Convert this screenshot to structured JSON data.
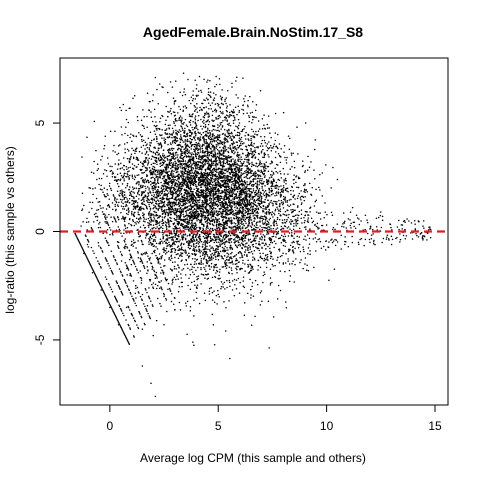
{
  "chart_data": {
    "type": "scatter",
    "title": "AgedFemale.Brain.NoStim.17_S8",
    "xlabel": "Average log CPM (this sample and others)",
    "ylabel": "log-ratio (this sample vs others)",
    "xlim": [
      -2.3,
      15.6
    ],
    "ylim": [
      -8.0,
      8.0
    ],
    "x_ticks": [
      0,
      5,
      10,
      15
    ],
    "x_tick_labels": [
      "0",
      "5",
      "10",
      "15"
    ],
    "y_ticks": [
      -5,
      0,
      5
    ],
    "y_tick_labels": [
      "-5",
      "0",
      "5"
    ],
    "grid": false,
    "point_color": "#000000",
    "reference_line": {
      "y": 0,
      "color": "#e02020",
      "style": "dashed"
    },
    "cloud_summary": {
      "center_x": 4.5,
      "center_y": 1.8,
      "x_range": [
        -1.6,
        14.8
      ],
      "y_range": [
        -7.6,
        7.3
      ]
    },
    "low_count_line": {
      "from": [
        -1.6,
        -0.1
      ],
      "to": [
        0.9,
        -5.2
      ]
    },
    "points": [
      [
        -1.6,
        -0.1
      ],
      [
        -1.2,
        -1.0
      ],
      [
        -0.8,
        -1.9
      ],
      [
        -0.4,
        -2.7
      ],
      [
        0.0,
        -3.5
      ],
      [
        0.4,
        -4.3
      ],
      [
        0.9,
        -5.2
      ],
      [
        1.5,
        -6.2
      ],
      [
        1.9,
        -7.0
      ],
      [
        2.1,
        -7.6
      ],
      [
        -1.2,
        1.2
      ],
      [
        -0.9,
        2.0
      ],
      [
        -0.6,
        2.4
      ],
      [
        -0.3,
        0.8
      ],
      [
        0.1,
        3.0
      ],
      [
        0.4,
        3.6
      ],
      [
        0.8,
        4.1
      ],
      [
        1.1,
        4.4
      ],
      [
        1.5,
        4.9
      ],
      [
        1.8,
        5.6
      ],
      [
        2.0,
        6.3
      ],
      [
        2.1,
        7.1
      ],
      [
        2.3,
        6.8
      ],
      [
        2.8,
        6.9
      ],
      [
        3.4,
        7.3
      ],
      [
        3.0,
        6.0
      ],
      [
        3.9,
        5.8
      ],
      [
        4.5,
        5.1
      ],
      [
        5.0,
        5.8
      ],
      [
        5.3,
        4.7
      ],
      [
        6.0,
        4.5
      ],
      [
        6.5,
        4.0
      ],
      [
        7.0,
        3.7
      ],
      [
        7.5,
        3.2
      ],
      [
        8.0,
        2.9
      ],
      [
        8.5,
        2.4
      ],
      [
        9.0,
        2.2
      ],
      [
        9.8,
        2.7
      ],
      [
        10.5,
        2.4
      ],
      [
        11.2,
        1.1
      ],
      [
        12.5,
        0.9
      ],
      [
        13.5,
        0.3
      ],
      [
        14.5,
        -0.2
      ],
      [
        14.8,
        0.1
      ],
      [
        2.0,
        1.8
      ],
      [
        2.5,
        2.2
      ],
      [
        3.0,
        1.5
      ],
      [
        3.5,
        2.8
      ],
      [
        4.0,
        2.0
      ],
      [
        4.5,
        1.6
      ],
      [
        5.0,
        1.9
      ],
      [
        5.5,
        1.2
      ],
      [
        6.0,
        1.4
      ],
      [
        6.5,
        1.1
      ],
      [
        7.0,
        1.3
      ],
      [
        7.5,
        0.9
      ],
      [
        8.0,
        0.8
      ],
      [
        8.5,
        0.7
      ],
      [
        9.0,
        0.5
      ],
      [
        10.0,
        0.3
      ],
      [
        2.2,
        -0.8
      ],
      [
        3.0,
        -1.2
      ],
      [
        3.5,
        -2.0
      ],
      [
        4.2,
        -1.5
      ],
      [
        5.0,
        -1.0
      ],
      [
        6.0,
        -0.6
      ],
      [
        7.2,
        -0.8
      ],
      [
        8.5,
        -0.5
      ],
      [
        2.5,
        -3.0
      ],
      [
        3.0,
        -3.6
      ],
      [
        3.5,
        -3.3
      ],
      [
        4.0,
        -2.6
      ],
      [
        5.0,
        -2.9
      ],
      [
        5.5,
        -3.2
      ],
      [
        6.5,
        -1.8
      ],
      [
        8.0,
        -1.5
      ],
      [
        9.0,
        -1.5
      ],
      [
        9.5,
        -0.9
      ],
      [
        10.2,
        -0.4
      ],
      [
        11.0,
        -0.7
      ],
      [
        12.0,
        -0.5
      ],
      [
        13.0,
        -0.6
      ],
      [
        1.0,
        -3.8
      ],
      [
        1.5,
        -4.5
      ],
      [
        2.0,
        -4.8
      ],
      [
        2.5,
        -4.3
      ],
      [
        1.2,
        -2.5
      ],
      [
        0.8,
        -2.0
      ]
    ]
  }
}
